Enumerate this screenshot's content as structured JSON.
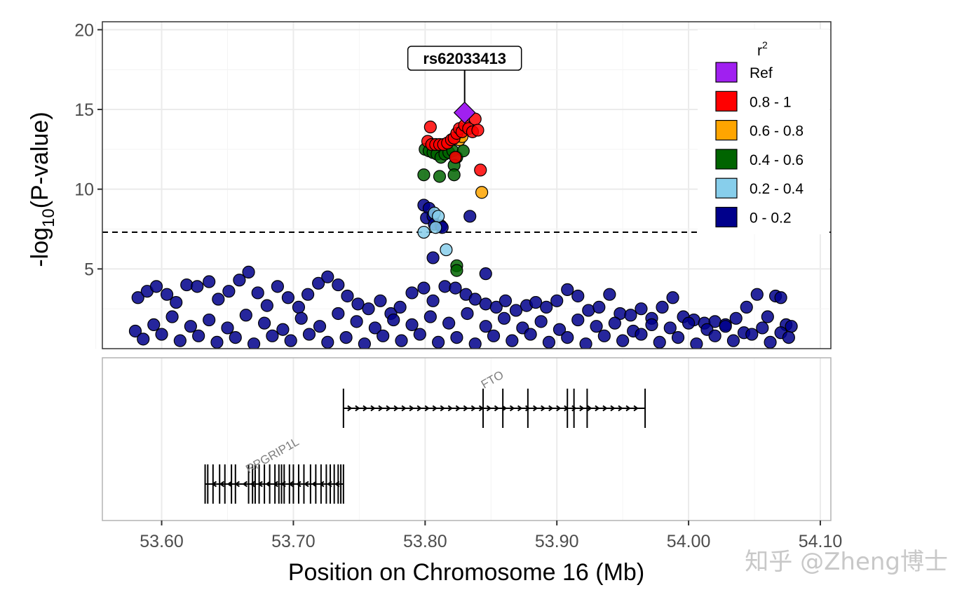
{
  "chart_data": {
    "type": "scatter",
    "lead_snp": {
      "id": "rs62033413",
      "position": 53.83,
      "neg_log10_p": 14.8
    },
    "yaxis": {
      "label_prefix": "-log",
      "label_subscript": "10",
      "label_suffix": "(P-value)",
      "ylim": [
        0,
        20.5
      ],
      "ticks": [
        {
          "value": 5,
          "label": "5"
        },
        {
          "value": 10,
          "label": "10"
        },
        {
          "value": 15,
          "label": "15"
        },
        {
          "value": 20,
          "label": "20"
        }
      ]
    },
    "xaxis": {
      "label": "Position on Chromosome 16 (Mb)",
      "xlim": [
        53.555,
        54.108
      ],
      "ticks": [
        {
          "value": 53.6,
          "label": "53.60"
        },
        {
          "value": 53.7,
          "label": "53.70"
        },
        {
          "value": 53.8,
          "label": "53.80"
        },
        {
          "value": 53.9,
          "label": "53.90"
        },
        {
          "value": 54.0,
          "label": "54.00"
        },
        {
          "value": 54.1,
          "label": "54.10"
        }
      ]
    },
    "significance_threshold": 7.3,
    "grid": true,
    "legend": {
      "title": "r",
      "title_sup": "2",
      "placement": "top-right",
      "items": [
        {
          "key": "ref",
          "label": "Ref",
          "color": "#a020f0",
          "shape": "diamond"
        },
        {
          "key": "r5",
          "label": "0.8 - 1",
          "color": "#ff0000",
          "shape": "square"
        },
        {
          "key": "r4",
          "label": "0.6 - 0.8",
          "color": "#ffa500",
          "shape": "square"
        },
        {
          "key": "r3",
          "label": "0.4 - 0.6",
          "color": "#006400",
          "shape": "square"
        },
        {
          "key": "r2",
          "label": "0.2 - 0.4",
          "color": "#87ceeb",
          "shape": "square"
        },
        {
          "key": "r1",
          "label": "0 - 0.2",
          "color": "#00008b",
          "shape": "square"
        }
      ]
    },
    "series": [
      {
        "key": "r5",
        "points": [
          [
            53.804,
            13.9
          ],
          [
            53.802,
            13.0
          ],
          [
            53.805,
            12.8
          ],
          [
            53.808,
            12.8
          ],
          [
            53.811,
            12.8
          ],
          [
            53.814,
            12.8
          ],
          [
            53.817,
            12.9
          ],
          [
            53.82,
            13.1
          ],
          [
            53.822,
            13.2
          ],
          [
            53.823,
            12.0
          ],
          [
            53.824,
            13.5
          ],
          [
            53.826,
            13.8
          ],
          [
            53.828,
            13.6
          ],
          [
            53.83,
            14.0
          ],
          [
            53.833,
            13.8
          ],
          [
            53.836,
            13.6
          ],
          [
            53.838,
            14.4
          ],
          [
            53.84,
            13.7
          ],
          [
            53.842,
            11.2
          ]
        ]
      },
      {
        "key": "r4",
        "points": [
          [
            53.826,
            13.1
          ],
          [
            53.843,
            9.8
          ],
          [
            53.828,
            13.3
          ]
        ]
      },
      {
        "key": "r3",
        "points": [
          [
            53.8,
            12.5
          ],
          [
            53.803,
            12.4
          ],
          [
            53.806,
            12.3
          ],
          [
            53.809,
            12.2
          ],
          [
            53.812,
            12.0
          ],
          [
            53.815,
            12.2
          ],
          [
            53.818,
            12.3
          ],
          [
            53.821,
            12.4
          ],
          [
            53.824,
            12.0
          ],
          [
            53.822,
            11.5
          ],
          [
            53.811,
            10.8
          ],
          [
            53.799,
            10.9
          ],
          [
            53.822,
            10.9
          ],
          [
            53.829,
            12.4
          ],
          [
            53.824,
            5.2
          ],
          [
            53.824,
            4.9
          ]
        ]
      },
      {
        "key": "r2",
        "points": [
          [
            53.799,
            7.3
          ],
          [
            53.807,
            8.5
          ],
          [
            53.81,
            8.3
          ],
          [
            53.808,
            7.6
          ],
          [
            53.816,
            6.2
          ]
        ]
      },
      {
        "key": "r1",
        "points": [
          [
            53.799,
            9.0
          ],
          [
            53.803,
            8.8
          ],
          [
            53.801,
            8.2
          ],
          [
            53.806,
            8.3
          ],
          [
            53.807,
            7.8
          ],
          [
            53.812,
            7.7
          ],
          [
            53.813,
            7.6
          ],
          [
            53.806,
            5.7
          ],
          [
            53.834,
            8.3
          ],
          [
            53.846,
            4.7
          ],
          [
            53.582,
            3.2
          ],
          [
            53.589,
            3.6
          ],
          [
            53.596,
            3.9
          ],
          [
            53.604,
            3.4
          ],
          [
            53.611,
            2.9
          ],
          [
            53.619,
            4.0
          ],
          [
            53.627,
            3.9
          ],
          [
            53.636,
            4.2
          ],
          [
            53.643,
            3.1
          ],
          [
            53.651,
            3.6
          ],
          [
            53.659,
            4.3
          ],
          [
            53.666,
            4.8
          ],
          [
            53.673,
            3.5
          ],
          [
            53.68,
            2.7
          ],
          [
            53.688,
            3.9
          ],
          [
            53.696,
            3.2
          ],
          [
            53.704,
            2.6
          ],
          [
            53.711,
            3.4
          ],
          [
            53.719,
            4.1
          ],
          [
            53.726,
            4.5
          ],
          [
            53.734,
            4.0
          ],
          [
            53.741,
            3.3
          ],
          [
            53.749,
            2.8
          ],
          [
            53.757,
            2.5
          ],
          [
            53.766,
            3.0
          ],
          [
            53.774,
            2.2
          ],
          [
            53.781,
            2.6
          ],
          [
            53.79,
            3.5
          ],
          [
            53.799,
            3.8
          ],
          [
            53.806,
            3.0
          ],
          [
            53.815,
            3.9
          ],
          [
            53.823,
            3.8
          ],
          [
            53.831,
            3.4
          ],
          [
            53.838,
            3.1
          ],
          [
            53.846,
            2.8
          ],
          [
            53.854,
            2.6
          ],
          [
            53.861,
            3.0
          ],
          [
            53.869,
            2.4
          ],
          [
            53.877,
            2.7
          ],
          [
            53.884,
            2.9
          ],
          [
            53.892,
            2.6
          ],
          [
            53.9,
            3.0
          ],
          [
            53.908,
            3.7
          ],
          [
            53.916,
            3.3
          ],
          [
            53.924,
            2.4
          ],
          [
            53.932,
            2.6
          ],
          [
            53.94,
            3.4
          ],
          [
            53.948,
            2.2
          ],
          [
            53.956,
            2.1
          ],
          [
            53.964,
            2.5
          ],
          [
            53.972,
            1.9
          ],
          [
            53.98,
            2.6
          ],
          [
            53.988,
            3.2
          ],
          [
            53.996,
            2.0
          ],
          [
            54.004,
            1.8
          ],
          [
            54.012,
            1.6
          ],
          [
            54.02,
            1.7
          ],
          [
            54.028,
            1.5
          ],
          [
            54.036,
            1.9
          ],
          [
            54.044,
            2.6
          ],
          [
            54.052,
            3.4
          ],
          [
            54.06,
            2.0
          ],
          [
            54.066,
            3.3
          ],
          [
            54.07,
            3.2
          ],
          [
            54.074,
            1.5
          ],
          [
            54.078,
            1.4
          ],
          [
            53.58,
            1.1
          ],
          [
            53.594,
            1.5
          ],
          [
            53.608,
            2.0
          ],
          [
            53.622,
            1.4
          ],
          [
            53.636,
            1.8
          ],
          [
            53.65,
            1.3
          ],
          [
            53.664,
            2.1
          ],
          [
            53.678,
            1.6
          ],
          [
            53.692,
            1.2
          ],
          [
            53.706,
            1.9
          ],
          [
            53.72,
            1.4
          ],
          [
            53.734,
            2.2
          ],
          [
            53.748,
            1.7
          ],
          [
            53.762,
            1.3
          ],
          [
            53.776,
            1.8
          ],
          [
            53.79,
            1.5
          ],
          [
            53.804,
            2.0
          ],
          [
            53.818,
            1.6
          ],
          [
            53.832,
            2.2
          ],
          [
            53.846,
            1.4
          ],
          [
            53.86,
            1.9
          ],
          [
            53.874,
            1.3
          ],
          [
            53.888,
            1.7
          ],
          [
            53.902,
            1.2
          ],
          [
            53.916,
            1.8
          ],
          [
            53.93,
            1.4
          ],
          [
            53.944,
            1.6
          ],
          [
            53.958,
            1.1
          ],
          [
            53.972,
            1.5
          ],
          [
            53.986,
            1.3
          ],
          [
            54.0,
            1.6
          ],
          [
            54.014,
            1.2
          ],
          [
            54.028,
            1.4
          ],
          [
            54.042,
            1.0
          ],
          [
            54.056,
            1.3
          ],
          [
            54.07,
            1.0
          ],
          [
            53.586,
            0.6
          ],
          [
            53.6,
            0.9
          ],
          [
            53.614,
            0.5
          ],
          [
            53.628,
            0.8
          ],
          [
            53.642,
            0.4
          ],
          [
            53.656,
            0.7
          ],
          [
            53.67,
            0.3
          ],
          [
            53.684,
            0.8
          ],
          [
            53.698,
            0.5
          ],
          [
            53.712,
            0.9
          ],
          [
            53.726,
            0.4
          ],
          [
            53.74,
            0.7
          ],
          [
            53.754,
            0.3
          ],
          [
            53.768,
            0.8
          ],
          [
            53.782,
            0.5
          ],
          [
            53.796,
            0.9
          ],
          [
            53.81,
            0.4
          ],
          [
            53.824,
            0.7
          ],
          [
            53.838,
            0.3
          ],
          [
            53.852,
            0.8
          ],
          [
            53.866,
            0.5
          ],
          [
            53.88,
            0.9
          ],
          [
            53.894,
            0.4
          ],
          [
            53.908,
            0.7
          ],
          [
            53.922,
            0.3
          ],
          [
            53.936,
            0.8
          ],
          [
            53.95,
            0.5
          ],
          [
            53.964,
            0.9
          ],
          [
            53.978,
            0.4
          ],
          [
            53.992,
            0.7
          ],
          [
            54.006,
            0.3
          ],
          [
            54.02,
            0.8
          ],
          [
            54.034,
            0.5
          ],
          [
            54.048,
            0.9
          ],
          [
            54.062,
            0.4
          ],
          [
            54.076,
            0.7
          ]
        ]
      }
    ],
    "genes": [
      {
        "name": "FTO",
        "start": 53.738,
        "end": 53.967,
        "strand": "+",
        "row": 0,
        "exons": [
          53.738,
          53.844,
          53.859,
          53.878,
          53.908,
          53.913,
          53.923,
          53.967
        ]
      },
      {
        "name": "RPGRIP1L",
        "start": 53.633,
        "end": 53.738,
        "strand": "-",
        "row": 1,
        "exons": [
          53.633,
          53.635,
          53.639,
          53.644,
          53.648,
          53.653,
          53.656,
          53.666,
          53.669,
          53.671,
          53.674,
          53.678,
          53.682,
          53.686,
          53.689,
          53.691,
          53.693,
          53.697,
          53.7,
          53.704,
          53.708,
          53.713,
          53.717,
          53.721,
          53.725,
          53.728,
          53.731,
          53.734,
          53.736,
          53.738
        ]
      }
    ]
  },
  "watermark": "知乎 @Zheng博士"
}
